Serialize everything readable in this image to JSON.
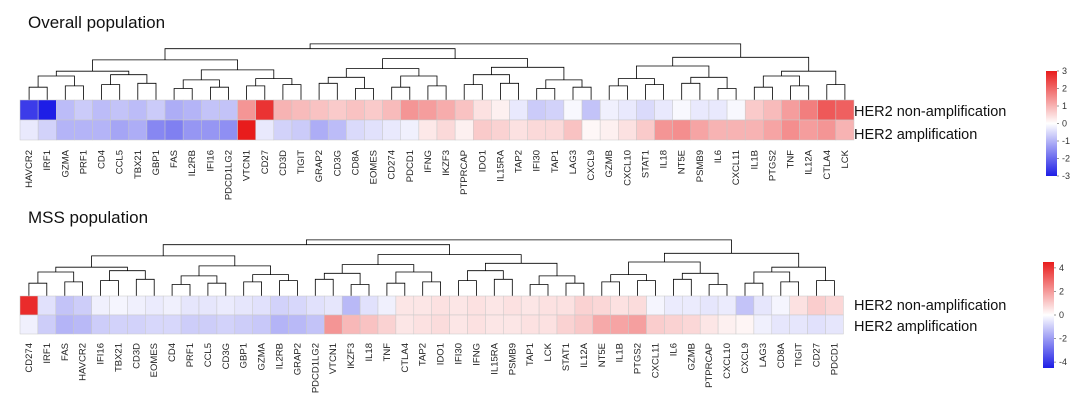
{
  "chart_data": [
    {
      "type": "heatmap",
      "title": "Overall population",
      "rows": [
        "HER2 non-amplification",
        "HER2 amplification"
      ],
      "columns": [
        "HAVCR2",
        "IRF1",
        "GZMA",
        "PRF1",
        "CD4",
        "CCL5",
        "TBX21",
        "GBP1",
        "FAS",
        "IL2RB",
        "IFI16",
        "PDCD1LG2",
        "VTCN1",
        "CD27",
        "CD3D",
        "TIGIT",
        "GRAP2",
        "CD3G",
        "CD8A",
        "EOMES",
        "CD274",
        "PDCD1",
        "IFNG",
        "IKZF3",
        "PTPRCAP",
        "IDO1",
        "IL15RA",
        "TAP2",
        "IFI30",
        "TAP1",
        "LAG3",
        "CXCL9",
        "GZMB",
        "CXCL10",
        "STAT1",
        "IL18",
        "NT5E",
        "PSMB9",
        "IL6",
        "CXCL11",
        "IL1B",
        "PTGS2",
        "TNF",
        "IL12A",
        "CTLA4",
        "LCK"
      ],
      "values": [
        [
          -2.6,
          -3.0,
          -0.9,
          -0.7,
          -0.9,
          -0.8,
          -0.9,
          -0.7,
          -1.1,
          -1.0,
          -0.8,
          -0.8,
          1.4,
          2.7,
          1.0,
          0.9,
          0.8,
          0.7,
          0.8,
          0.7,
          0.9,
          1.4,
          1.3,
          1.1,
          0.8,
          0.4,
          0.2,
          -0.3,
          -0.7,
          -0.6,
          -0.1,
          -0.8,
          -0.2,
          -0.3,
          -0.5,
          -0.3,
          -0.1,
          -0.3,
          -0.3,
          -0.1,
          0.7,
          0.9,
          1.3,
          1.7,
          2.2,
          2.1
        ],
        [
          -0.3,
          -0.6,
          -1.0,
          -1.0,
          -1.0,
          -1.2,
          -1.1,
          -1.6,
          -1.7,
          -1.4,
          -1.4,
          -1.5,
          3.1,
          -0.3,
          -0.6,
          -0.7,
          -1.1,
          -0.9,
          -0.5,
          -0.4,
          -0.3,
          -0.2,
          0.3,
          0.5,
          0.2,
          0.7,
          0.6,
          0.4,
          0.5,
          0.5,
          0.8,
          0.1,
          0.2,
          0.4,
          0.7,
          1.4,
          1.5,
          1.2,
          1.0,
          1.0,
          1.0,
          1.2,
          1.5,
          1.3,
          1.4,
          1.0
        ]
      ],
      "colorbar": {
        "min": -3,
        "max": 3,
        "ticks": [
          "3",
          "2",
          "1",
          "0",
          "-1",
          "-2",
          "-3"
        ],
        "low_color": "#1e1ee6",
        "mid_color": "#ffffff",
        "high_color": "#e81c1c"
      }
    },
    {
      "type": "heatmap",
      "title": "MSS population",
      "rows": [
        "HER2 non-amplification",
        "HER2 amplification"
      ],
      "columns": [
        "CD274",
        "IRF1",
        "FAS",
        "HAVCR2",
        "IFI16",
        "TBX21",
        "CD3D",
        "EOMES",
        "CD4",
        "PRF1",
        "CCL5",
        "CD3G",
        "GBP1",
        "GZMA",
        "IL2RB",
        "GRAP2",
        "PDCD1LG2",
        "VTCN1",
        "IKZF3",
        "IL18",
        "TNF",
        "CTLA4",
        "TAP2",
        "IDO1",
        "IFI30",
        "IFNG",
        "IL15RA",
        "PSMB9",
        "TAP1",
        "LCK",
        "STAT1",
        "IL12A",
        "NT5E",
        "IL1B",
        "PTGS2",
        "CXCL11",
        "IL6",
        "GZMB",
        "PTPRCAP",
        "CXCL10",
        "CXCL9",
        "LAG3",
        "CD8A",
        "TIGIT",
        "CD27",
        "PDCD1"
      ],
      "values": [
        [
          4.2,
          -0.6,
          -1.2,
          -1.0,
          -0.3,
          -0.2,
          -0.3,
          -0.4,
          -0.3,
          -0.5,
          -0.5,
          -0.4,
          -0.5,
          -0.6,
          -0.9,
          -0.8,
          -0.6,
          -0.5,
          -1.4,
          -0.6,
          -0.3,
          0.5,
          0.5,
          0.6,
          0.5,
          0.6,
          0.5,
          0.6,
          0.5,
          0.6,
          0.6,
          0.9,
          0.8,
          0.6,
          0.7,
          -0.2,
          -0.4,
          -0.4,
          -0.5,
          -0.4,
          -1.2,
          -0.5,
          -0.2,
          0.6,
          1.0,
          0.8
        ],
        [
          -0.3,
          -1.0,
          -1.5,
          -1.4,
          -1.0,
          -0.9,
          -0.9,
          -0.8,
          -0.8,
          -1.0,
          -1.0,
          -0.9,
          -1.0,
          -1.1,
          -1.5,
          -1.4,
          -1.2,
          2.1,
          1.4,
          1.2,
          0.9,
          0.5,
          0.6,
          0.7,
          0.5,
          0.6,
          0.5,
          0.5,
          0.6,
          0.6,
          0.9,
          1.1,
          1.7,
          1.8,
          1.9,
          1.0,
          0.9,
          0.8,
          0.5,
          0.3,
          0.2,
          -0.3,
          -0.5,
          -0.5,
          -0.6,
          -0.5
        ]
      ],
      "colorbar": {
        "min": -4.5,
        "max": 4.5,
        "ticks": [
          "4",
          "2",
          "0",
          "-2",
          "-4"
        ],
        "low_color": "#1e1ee6",
        "mid_color": "#ffffff",
        "high_color": "#e81c1c"
      }
    }
  ]
}
